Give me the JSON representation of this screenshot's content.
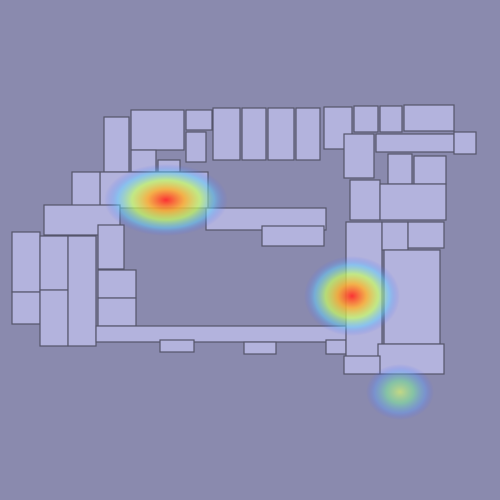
{
  "map": {
    "kind": "floor-plan-heatmap",
    "colors": {
      "background": "#8a8aae",
      "room_fill": "#b3b3dd",
      "wall": "#55556a",
      "heat_low": "#5060ff",
      "heat_mid": "#80ff80",
      "heat_high": "#ff3030"
    },
    "hotspots": [
      {
        "name": "hotspot-north-corridor",
        "intensity": 0.95
      },
      {
        "name": "hotspot-east-wing",
        "intensity": 0.9
      },
      {
        "name": "hotspot-southeast",
        "intensity": 0.55
      }
    ]
  }
}
